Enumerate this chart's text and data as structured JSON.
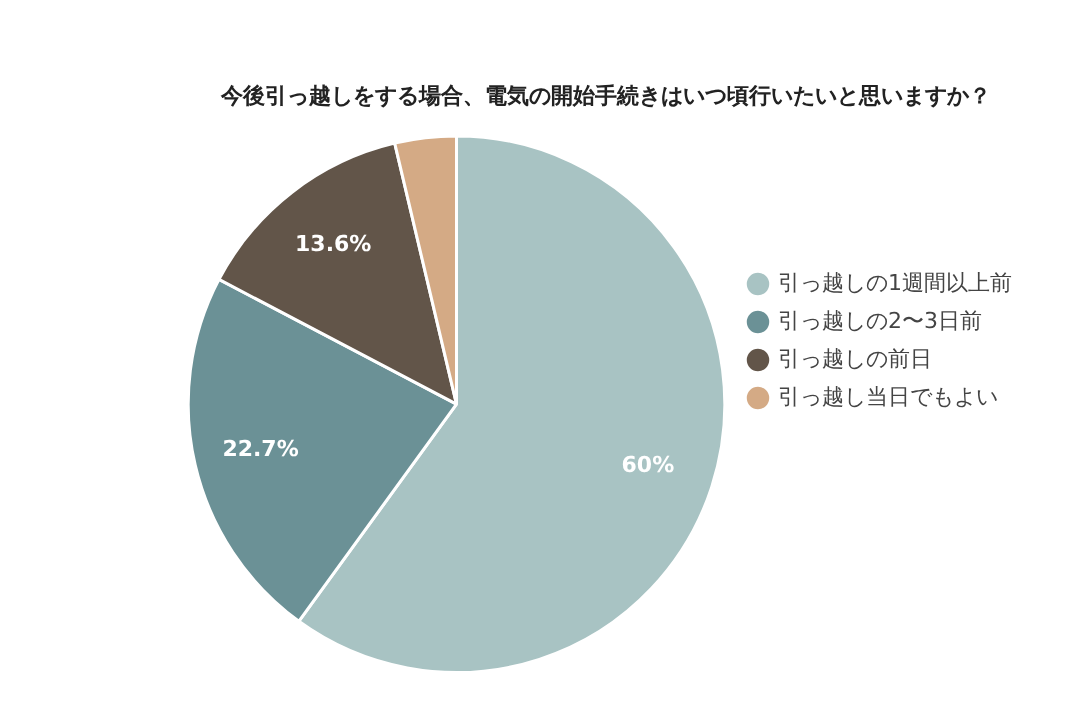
{
  "chart_data": {
    "type": "pie",
    "title": "今後引っ越しをする場合、電気の開始手続きはいつ頃行いたいと思いますか？",
    "categories": [
      "引っ越しの1週間以上前",
      "引っ越しの2〜3日前",
      "引っ越しの前日",
      "引っ越し当日でもよい"
    ],
    "values": [
      60,
      22.7,
      13.6,
      3.7
    ],
    "colors": [
      "#a8c3c3",
      "#6b9196",
      "#625549",
      "#d4aa85"
    ],
    "value_labels": [
      "60%",
      "22.7%",
      "13.6%",
      null
    ],
    "legend": "right"
  }
}
